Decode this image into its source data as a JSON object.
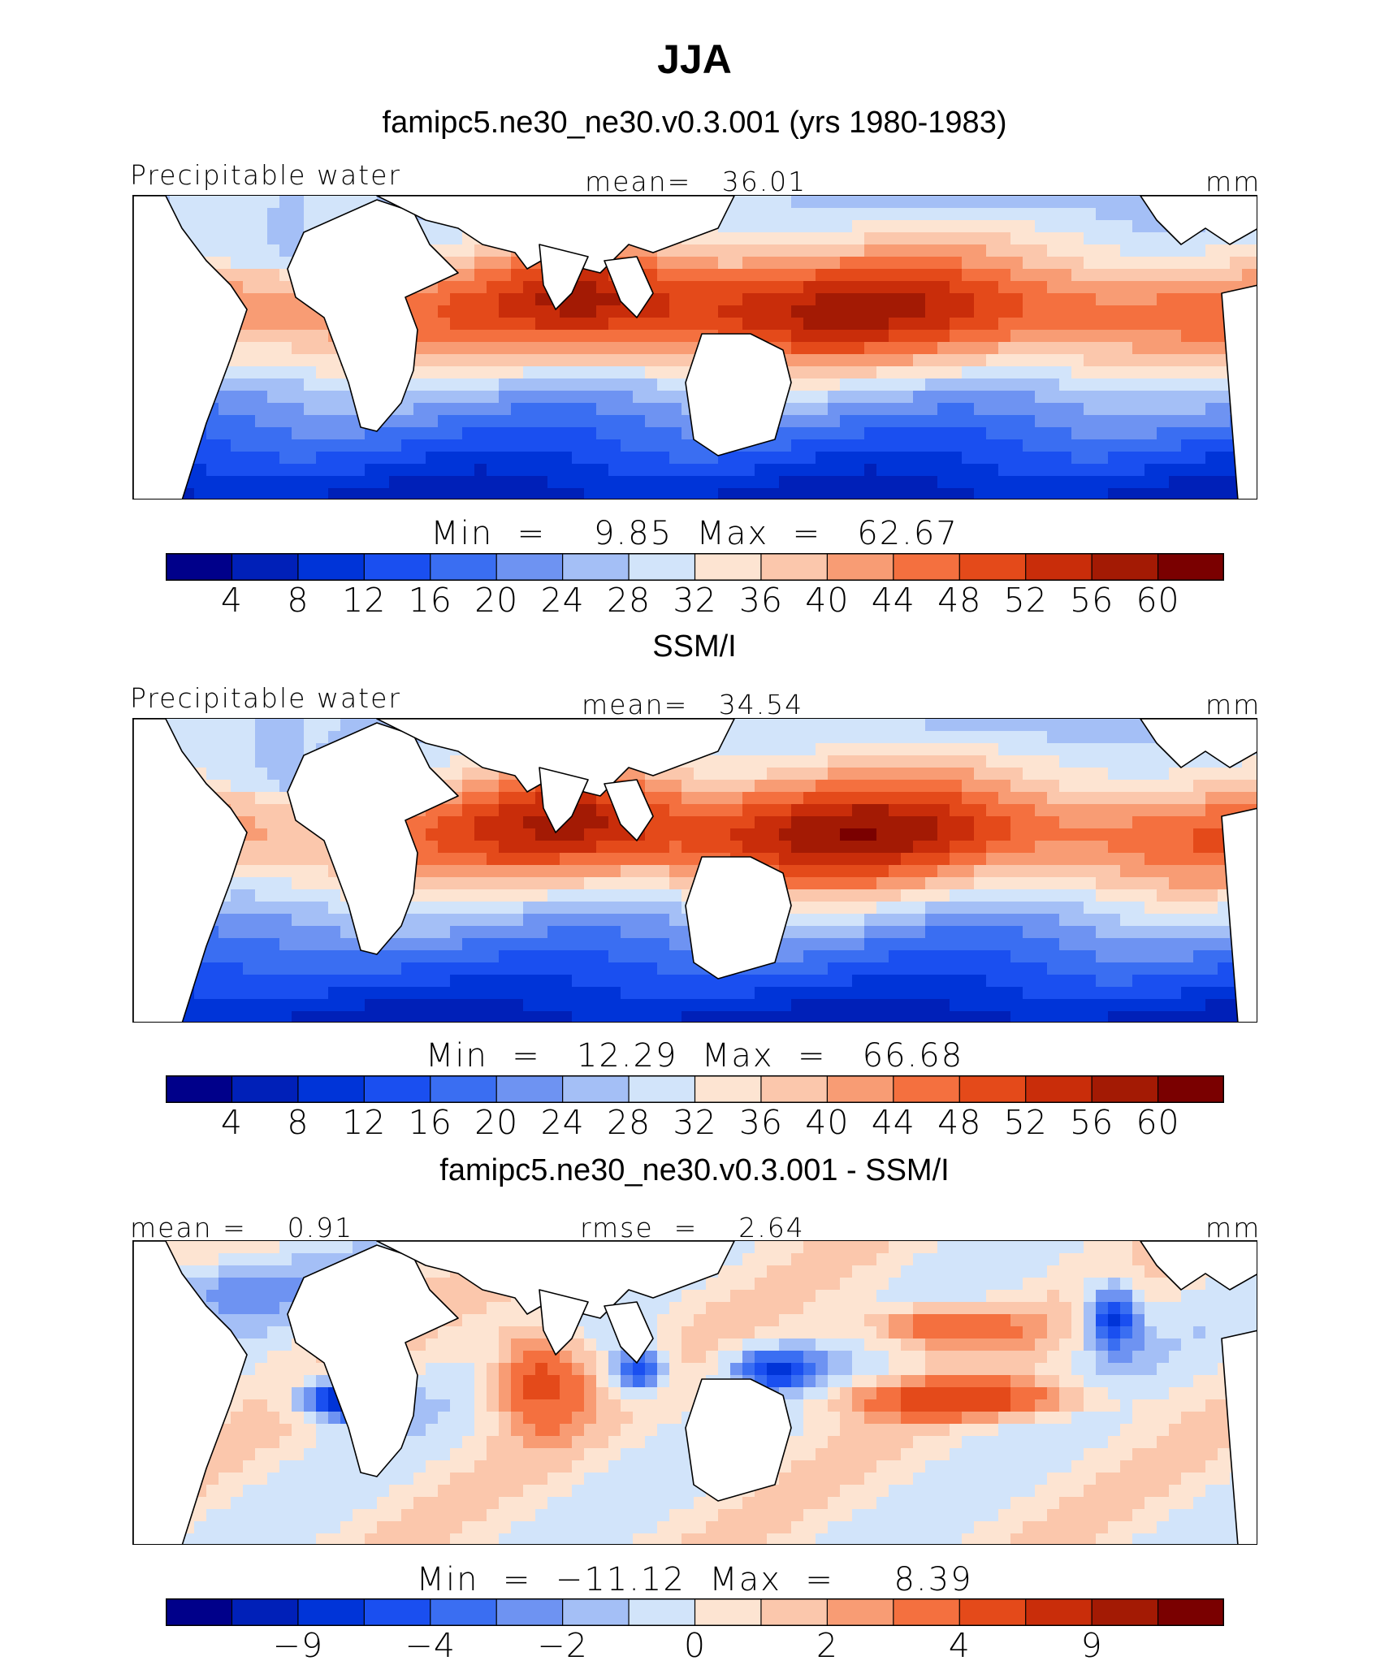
{
  "figure": {
    "title": "JJA"
  },
  "colors": {
    "pw_scale": [
      "#00008a",
      "#0020b8",
      "#0034d8",
      "#1a4ff0",
      "#3a6ef2",
      "#6e93f2",
      "#a4bff6",
      "#d2e4fa",
      "#fde4d2",
      "#fbc7ac",
      "#f89c74",
      "#f4703f",
      "#e44a1a",
      "#c92d0a",
      "#a31a04",
      "#7a0000"
    ],
    "diff_scale": [
      "#00008a",
      "#0020b8",
      "#0034d8",
      "#1a4ff0",
      "#3a6ef2",
      "#6e93f2",
      "#a4bff6",
      "#d2e4fa",
      "#fde4d2",
      "#fbc7ac",
      "#f89c74",
      "#f4703f",
      "#e44a1a",
      "#c92d0a",
      "#a31a04",
      "#7a0000"
    ]
  },
  "chart_data": [
    {
      "type": "heatmap",
      "subtitle": "famipc5.ne30_ne30.v0.3.001 (yrs 1980-1983)",
      "left_label": "Precipitable water",
      "center_label": "mean=   36.01",
      "units": "mm",
      "min_max": "Min  =    9.85  Max  =   62.67",
      "stats": {
        "mean": 36.01,
        "min": 9.85,
        "max": 62.67
      },
      "colorbar_ticks": [
        "4",
        "8",
        "12",
        "16",
        "20",
        "24",
        "28",
        "32",
        "36",
        "40",
        "44",
        "48",
        "52",
        "56",
        "60"
      ],
      "contour_levels": [
        4,
        8,
        12,
        16,
        20,
        24,
        28,
        32,
        36,
        40,
        44,
        48,
        52,
        56,
        60
      ]
    },
    {
      "type": "heatmap",
      "subtitle": "SSM/I",
      "left_label": "Precipitable water",
      "center_label": "mean=   34.54",
      "units": "mm",
      "min_max": "Min  =   12.29  Max  =   66.68",
      "stats": {
        "mean": 34.54,
        "min": 12.29,
        "max": 66.68
      },
      "colorbar_ticks": [
        "4",
        "8",
        "12",
        "16",
        "20",
        "24",
        "28",
        "32",
        "36",
        "40",
        "44",
        "48",
        "52",
        "56",
        "60"
      ],
      "contour_levels": [
        4,
        8,
        12,
        16,
        20,
        24,
        28,
        32,
        36,
        40,
        44,
        48,
        52,
        56,
        60
      ]
    },
    {
      "type": "heatmap",
      "subtitle": "famipc5.ne30_ne30.v0.3.001 - SSM/I",
      "left_label": "mean =    0.91",
      "center_label": "rmse  =    2.64",
      "units": "mm",
      "min_max": "Min  =  −11.12  Max  =     8.39",
      "stats": {
        "mean": 0.91,
        "rmse": 2.64,
        "min": -11.12,
        "max": 8.39
      },
      "colorbar_ticks": [
        "−9",
        "",
        "−4",
        "",
        "−2",
        "",
        "0",
        "",
        "2",
        "",
        "4",
        "",
        "9"
      ],
      "contour_levels": [
        -9,
        -6,
        -4,
        -3,
        -2,
        -1,
        0,
        1,
        2,
        3,
        4,
        6,
        9
      ]
    }
  ]
}
